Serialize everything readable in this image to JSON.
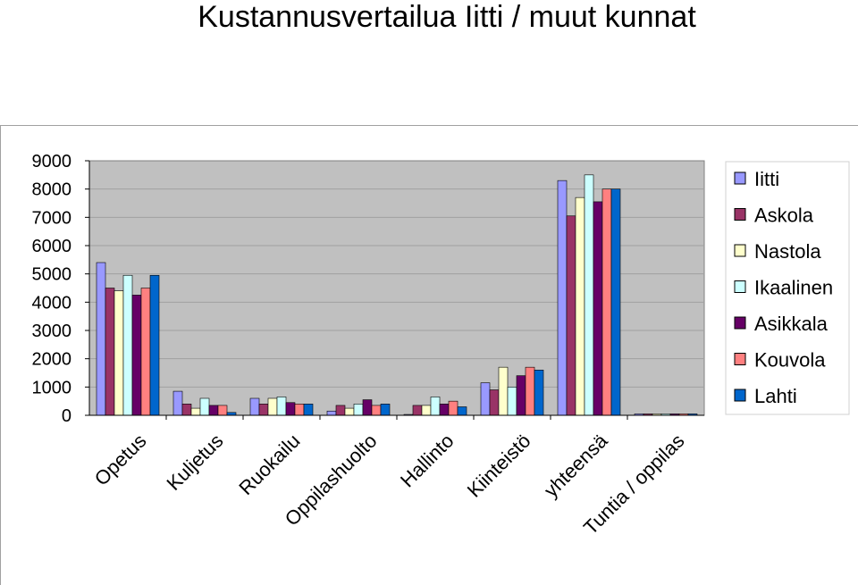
{
  "title": "Kustannusvertailua Iitti / muut kunnat",
  "chart_data": {
    "type": "bar",
    "title": "Kustannusvertailua Iitti / muut kunnat",
    "xlabel": "",
    "ylabel": "",
    "ylim": [
      0,
      9000
    ],
    "yticks": [
      0,
      1000,
      2000,
      3000,
      4000,
      5000,
      6000,
      7000,
      8000,
      9000
    ],
    "grid": true,
    "legend_position": "right",
    "categories": [
      "Opetus",
      "Kuljetus",
      "Ruokailu",
      "Oppilashuolto",
      "Hallinto",
      "Kiinteistö",
      "yhteensä",
      "Tuntia / oppilas"
    ],
    "series": [
      {
        "name": "Iitti",
        "color": "#9999ff",
        "values": [
          5400,
          850,
          600,
          150,
          30,
          1150,
          8300,
          50
        ]
      },
      {
        "name": "Askola",
        "color": "#993366",
        "values": [
          4500,
          400,
          400,
          350,
          350,
          900,
          7050,
          50
        ]
      },
      {
        "name": "Nastola",
        "color": "#ffffcc",
        "values": [
          4400,
          250,
          600,
          250,
          350,
          1700,
          7700,
          50
        ]
      },
      {
        "name": "Ikaalinen",
        "color": "#ccffff",
        "values": [
          4950,
          600,
          650,
          400,
          650,
          1000,
          8500,
          50
        ]
      },
      {
        "name": "Asikkala",
        "color": "#660066",
        "values": [
          4250,
          350,
          450,
          550,
          400,
          1400,
          7550,
          50
        ]
      },
      {
        "name": "Kouvola",
        "color": "#ff8080",
        "values": [
          4500,
          350,
          400,
          350,
          500,
          1700,
          8000,
          50
        ]
      },
      {
        "name": "Lahti",
        "color": "#0066cc",
        "values": [
          4950,
          100,
          400,
          400,
          300,
          1600,
          8000,
          50
        ]
      }
    ]
  }
}
